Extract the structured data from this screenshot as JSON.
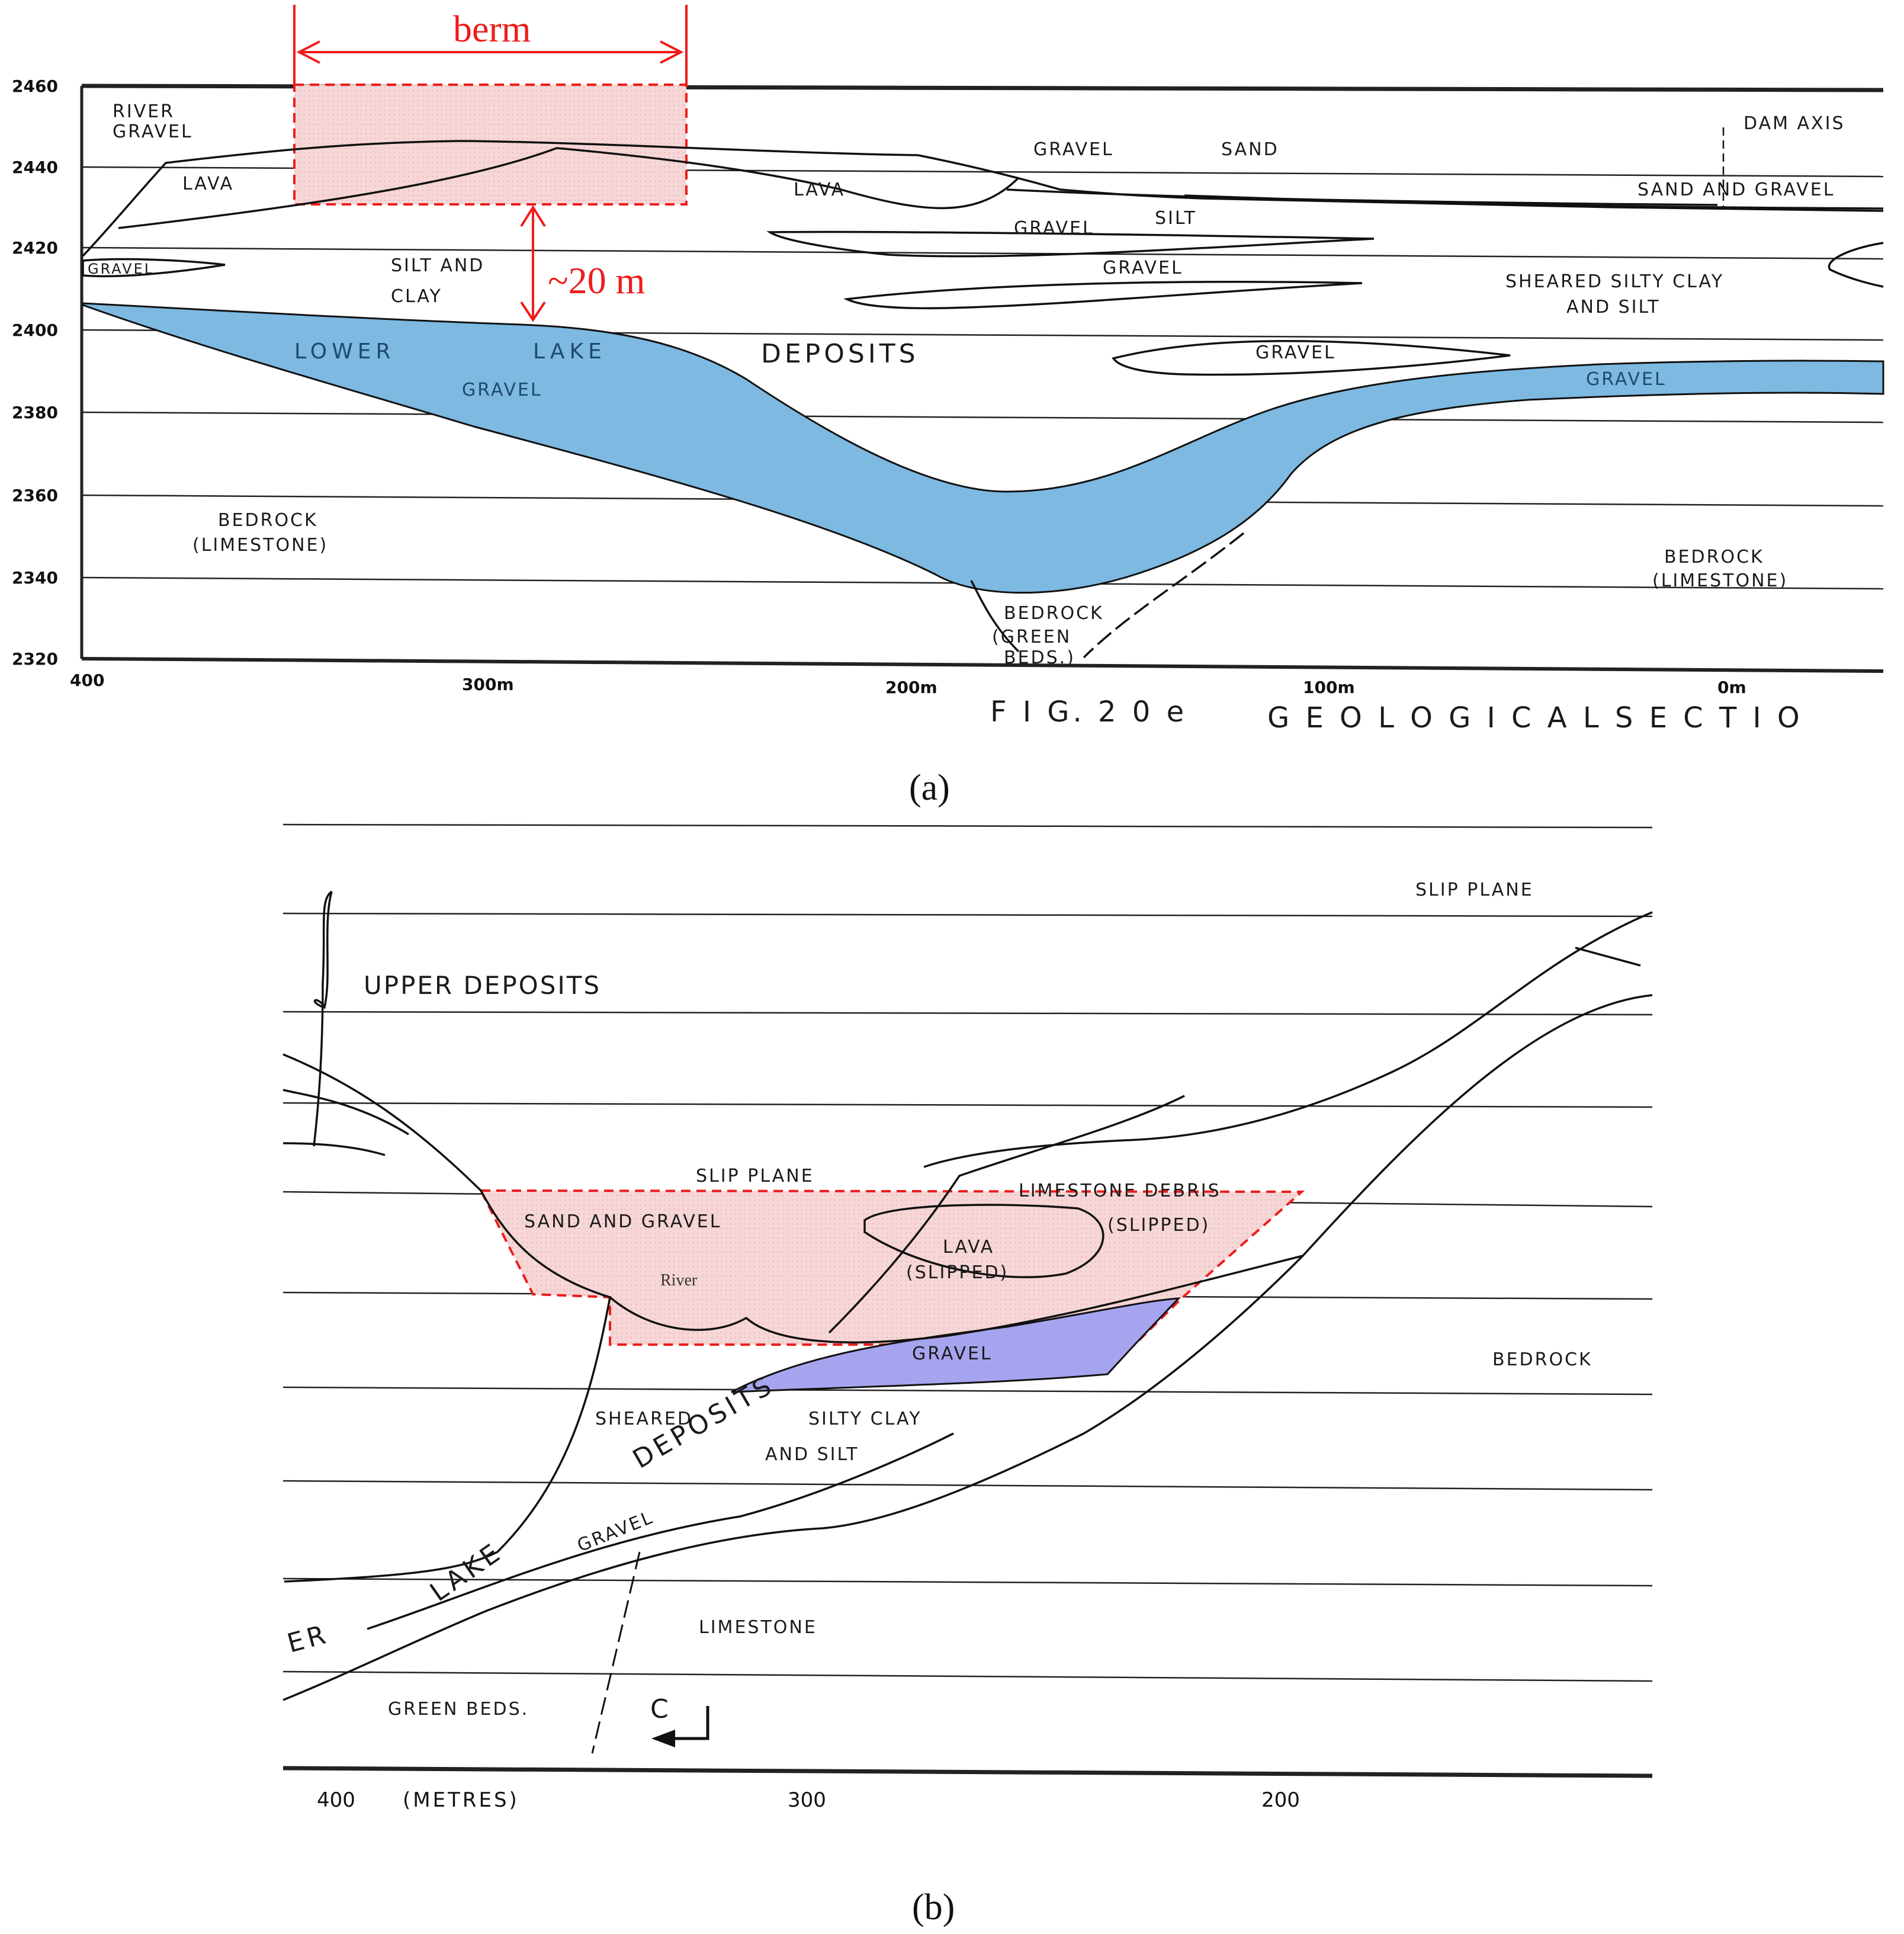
{
  "panel_a": {
    "caption": "(a)",
    "y_ticks": [
      "2460",
      "2440",
      "2420",
      "2400",
      "2380",
      "2360",
      "2340",
      "2320"
    ],
    "x_ticks": [
      "400",
      "300m",
      "200m",
      "100m",
      "0m"
    ],
    "annotation_berm": "berm",
    "annotation_depth": "~20 m",
    "labels": {
      "river": "RIVER",
      "gravel_rg": "GRAVEL",
      "lava_left": "LAVA",
      "lava_mid": "LAVA",
      "gravel_top": "GRAVEL",
      "sand": "SAND",
      "dam_axis": "DAM AXIS",
      "sand_and_gravel": "SAND  AND  GRAVEL",
      "silt": "SILT",
      "gravel_lens1": "GRAVEL",
      "gravel_left": "GRAVEL",
      "silt_and": "SILT AND",
      "clay": "CLAY",
      "gravel_lens2": "GRAVEL",
      "sheared_silty_clay": "SHEARED SILTY CLAY",
      "and_silt": "AND SILT",
      "lower": "LOWER",
      "lake": "LAKE",
      "deposits": "DEPOSITS",
      "gravel_lens3": "GRAVEL",
      "gravel_blue_left": "GRAVEL",
      "gravel_blue_right": "GRAVEL",
      "bedrock_left": "BEDROCK",
      "limestone_left": "(LIMESTONE)",
      "bedrock_mid": "BEDROCK",
      "green": "(GREEN",
      "beds": "BEDS.)",
      "bedrock_right": "BEDROCK",
      "limestone_right": "(LIMESTONE)",
      "fig": "F I G. 2 0 e",
      "geological_section": "G E O L O G I C A L     S E C T I O"
    }
  },
  "panel_b": {
    "caption": "(b)",
    "x_ticks": [
      "400",
      "(METRES)",
      "300",
      "200"
    ],
    "labels": {
      "slip_plane_top": "SLIP PLANE",
      "upper_deposits": "UPPER DEPOSITS",
      "slip_plane_mid": "SLIP PLANE",
      "limestone_debris": "LIMESTONE DEBRIS",
      "slipped1": "(SLIPPED)",
      "sand_and_gravel": "SAND AND GRAVEL",
      "lava": "LAVA",
      "slipped2": "(SLIPPED)",
      "river": "River",
      "gravel": "GRAVEL",
      "bedrock": "BEDROCK",
      "sheared": "SHEARED",
      "silty_clay": "SILTY CLAY",
      "and_silt": "AND SILT",
      "deposits": "DEPOSITS",
      "lake": "LAKE",
      "gravel2": "GRAVEL",
      "er": "ER",
      "limestone": "LIMESTONE",
      "green_beds": "GREEN BEDS.",
      "c_mark": "C"
    }
  },
  "colors": {
    "blue_fill": "#7db9e1",
    "pink_fill": "#f5d3d3",
    "purple_fill": "#a7a4ef",
    "red": "#ee1c1c"
  }
}
